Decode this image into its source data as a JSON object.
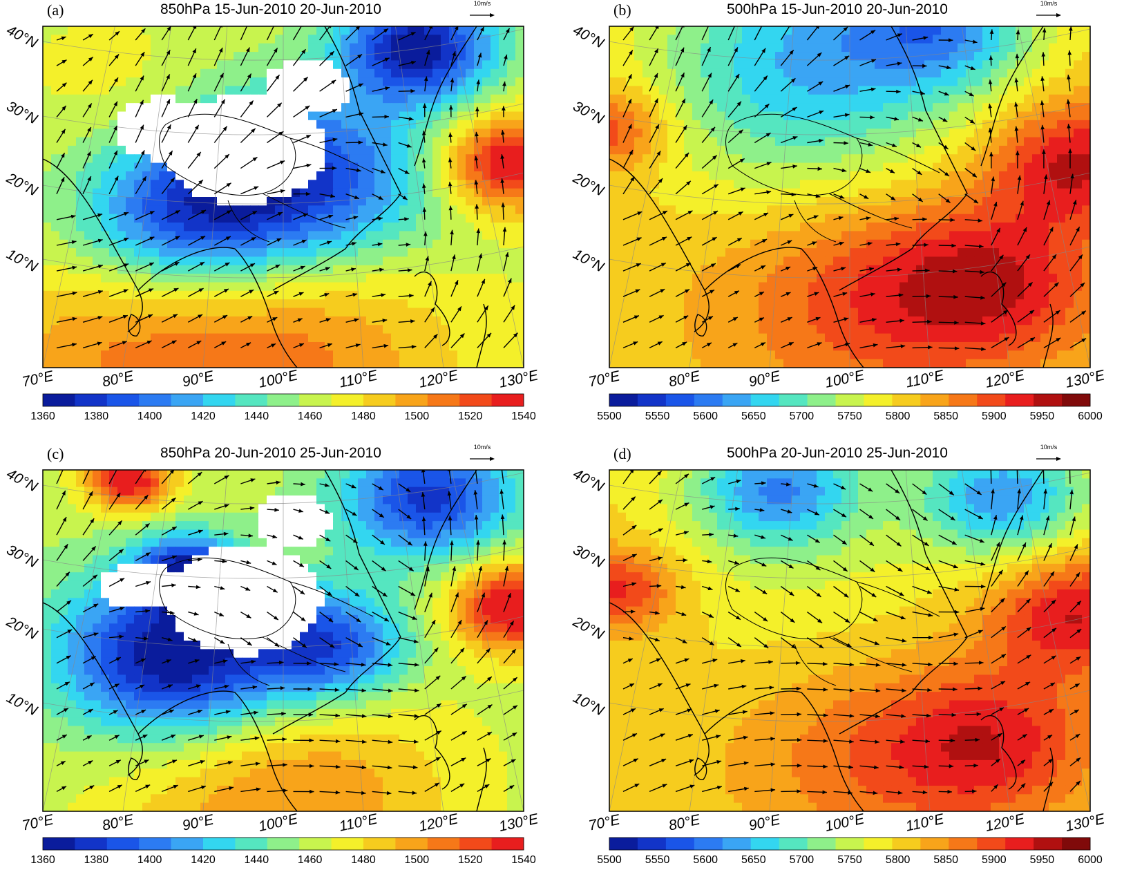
{
  "panels": [
    {
      "id": "a",
      "letter": "(a)",
      "title": "850hPa 15-Jun-2010 20-Jun-2010",
      "ref_vector": "10m/s",
      "lat_labels": [
        "40°N",
        "30°N",
        "20°N",
        "10°N"
      ],
      "lon_labels": [
        "70°E",
        "80°E",
        "90°E",
        "100°E",
        "110°E",
        "120°E",
        "130°E"
      ],
      "colorbar": {
        "ticks": [
          "1360",
          "1380",
          "1400",
          "1420",
          "1440",
          "1460",
          "1480",
          "1500",
          "1520",
          "1540"
        ],
        "colors": [
          "#0a1c9c",
          "#1234c8",
          "#1a55e8",
          "#2c7bf2",
          "#3aa5f4",
          "#33d6f0",
          "#55e6c0",
          "#8ef08a",
          "#c8f44e",
          "#f4f02a",
          "#f6cc1e",
          "#f8a41a",
          "#f67818",
          "#f24a1a",
          "#e81e1e"
        ]
      }
    },
    {
      "id": "b",
      "letter": "(b)",
      "title": "500hPa 15-Jun-2010 20-Jun-2010",
      "ref_vector": "10m/s",
      "lat_labels": [
        "40°N",
        "30°N",
        "20°N",
        "10°N"
      ],
      "lon_labels": [
        "70°E",
        "80°E",
        "90°E",
        "100°E",
        "110°E",
        "120°E",
        "130°E"
      ],
      "colorbar": {
        "ticks": [
          "5500",
          "5550",
          "5600",
          "5650",
          "5700",
          "5750",
          "5800",
          "5850",
          "5900",
          "5950",
          "6000"
        ],
        "colors": [
          "#0a1c9c",
          "#1234c8",
          "#1a55e8",
          "#2c7bf2",
          "#3aa5f4",
          "#33d6f0",
          "#55e6c0",
          "#8ef08a",
          "#c8f44e",
          "#f4f02a",
          "#f6cc1e",
          "#f8a41a",
          "#f67818",
          "#f24a1a",
          "#e81e1e",
          "#b01010",
          "#800a0a"
        ]
      }
    },
    {
      "id": "c",
      "letter": "(c)",
      "title": "850hPa 20-Jun-2010 25-Jun-2010",
      "ref_vector": "10m/s",
      "lat_labels": [
        "40°N",
        "30°N",
        "20°N",
        "10°N"
      ],
      "lon_labels": [
        "70°E",
        "80°E",
        "90°E",
        "100°E",
        "110°E",
        "120°E",
        "130°E"
      ],
      "colorbar": {
        "ticks": [
          "1360",
          "1380",
          "1400",
          "1420",
          "1440",
          "1460",
          "1480",
          "1500",
          "1520",
          "1540"
        ],
        "colors": [
          "#0a1c9c",
          "#1234c8",
          "#1a55e8",
          "#2c7bf2",
          "#3aa5f4",
          "#33d6f0",
          "#55e6c0",
          "#8ef08a",
          "#c8f44e",
          "#f4f02a",
          "#f6cc1e",
          "#f8a41a",
          "#f67818",
          "#f24a1a",
          "#e81e1e"
        ]
      }
    },
    {
      "id": "d",
      "letter": "(d)",
      "title": "500hPa 20-Jun-2010 25-Jun-2010",
      "ref_vector": "10m/s",
      "lat_labels": [
        "40°N",
        "30°N",
        "20°N",
        "10°N"
      ],
      "lon_labels": [
        "70°E",
        "80°E",
        "90°E",
        "100°E",
        "110°E",
        "120°E",
        "130°E"
      ],
      "colorbar": {
        "ticks": [
          "5500",
          "5550",
          "5600",
          "5650",
          "5700",
          "5750",
          "5800",
          "5850",
          "5900",
          "5950",
          "6000"
        ],
        "colors": [
          "#0a1c9c",
          "#1234c8",
          "#1a55e8",
          "#2c7bf2",
          "#3aa5f4",
          "#33d6f0",
          "#55e6c0",
          "#8ef08a",
          "#c8f44e",
          "#f4f02a",
          "#f6cc1e",
          "#f8a41a",
          "#f67818",
          "#f24a1a",
          "#e81e1e",
          "#b01010",
          "#800a0a"
        ]
      }
    }
  ]
}
